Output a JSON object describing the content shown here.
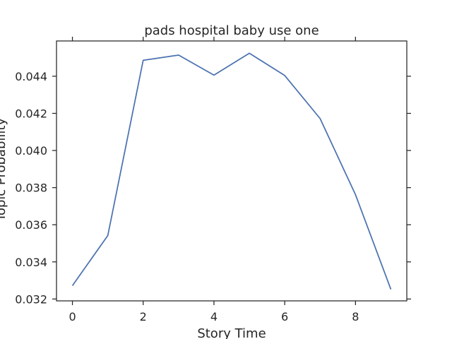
{
  "chart_data": {
    "type": "line",
    "title": "pads hospital baby use one",
    "xlabel": "Story Time",
    "ylabel": "Topic Probability",
    "x": [
      0,
      1,
      2,
      3,
      4,
      5,
      6,
      7,
      8,
      9
    ],
    "series": [
      {
        "values": [
          0.03272,
          0.03542,
          0.04486,
          0.04514,
          0.04406,
          0.04524,
          0.04404,
          0.04172,
          0.03762,
          0.03252
        ],
        "color": "#4c72b0"
      }
    ],
    "xticks": [
      0,
      2,
      4,
      6,
      8
    ],
    "yticks": [
      0.032,
      0.034,
      0.036,
      0.038,
      0.04,
      0.042,
      0.044
    ],
    "ytick_labels": [
      "0.032",
      "0.034",
      "0.036",
      "0.038",
      "0.040",
      "0.042",
      "0.044"
    ],
    "xlim": [
      -0.45,
      9.45
    ],
    "ylim": [
      0.0319,
      0.0459
    ],
    "grid": false
  }
}
